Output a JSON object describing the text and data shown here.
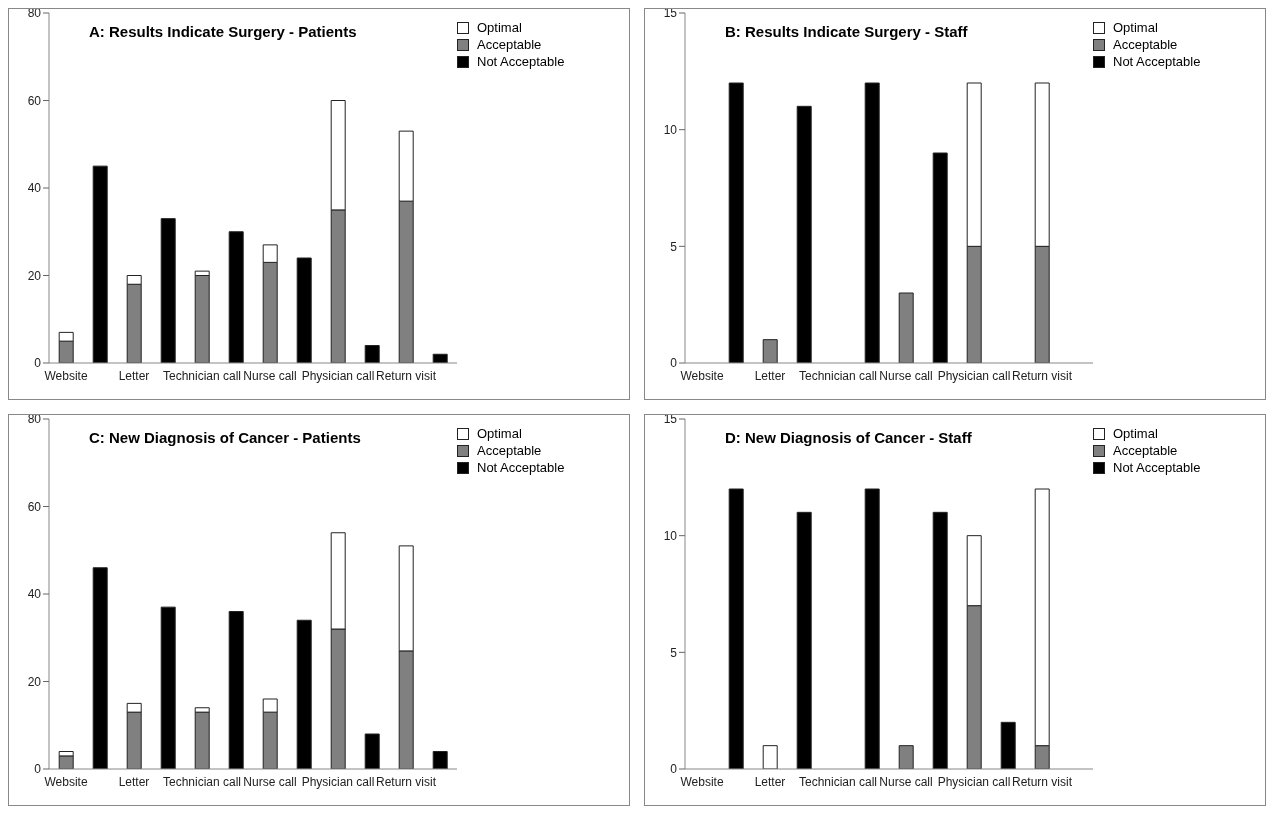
{
  "chart_data": [
    {
      "type": "bar",
      "title": "A: Results Indicate Surgery - Patients",
      "categories": [
        "Website",
        null,
        "Letter",
        null,
        "Technician call",
        null,
        "Nurse call",
        null,
        "Physician call",
        null,
        "Return visit",
        null
      ],
      "stacked": true,
      "ylim": [
        0,
        80
      ],
      "yticks": [
        0,
        20,
        40,
        60,
        80
      ],
      "grid": false,
      "legend": "top right",
      "series": [
        {
          "name": "Not Acceptable",
          "color": "#000000",
          "values": [
            null,
            45,
            null,
            33,
            null,
            30,
            null,
            24,
            null,
            4,
            null,
            2
          ]
        },
        {
          "name": "Acceptable",
          "color": "#808080",
          "values": [
            5,
            null,
            18,
            null,
            20,
            null,
            23,
            null,
            35,
            null,
            37,
            null
          ]
        },
        {
          "name": "Optimal",
          "color": "#ffffff",
          "values": [
            2,
            null,
            2,
            null,
            1,
            null,
            4,
            null,
            25,
            null,
            16,
            null
          ]
        }
      ]
    },
    {
      "type": "bar",
      "title": "B: Results Indicate Surgery - Staff",
      "categories": [
        "Website",
        null,
        "Letter",
        null,
        "Technician call",
        null,
        "Nurse call",
        null,
        "Physician call",
        null,
        "Return visit",
        null
      ],
      "stacked": true,
      "ylim": [
        0,
        15
      ],
      "yticks": [
        0,
        5,
        10,
        15
      ],
      "grid": false,
      "legend": "top right",
      "series": [
        {
          "name": "Not Acceptable",
          "color": "#000000",
          "values": [
            null,
            12,
            null,
            11,
            null,
            12,
            null,
            9,
            null,
            null,
            null,
            null
          ]
        },
        {
          "name": "Acceptable",
          "color": "#808080",
          "values": [
            null,
            null,
            1,
            null,
            null,
            null,
            3,
            null,
            5,
            null,
            5,
            null
          ]
        },
        {
          "name": "Optimal",
          "color": "#ffffff",
          "values": [
            null,
            null,
            null,
            null,
            null,
            null,
            null,
            null,
            7,
            null,
            7,
            null
          ]
        }
      ]
    },
    {
      "type": "bar",
      "title": "C: New Diagnosis of Cancer - Patients",
      "categories": [
        "Website",
        null,
        "Letter",
        null,
        "Technician call",
        null,
        "Nurse call",
        null,
        "Physician call",
        null,
        "Return visit",
        null
      ],
      "stacked": true,
      "ylim": [
        0,
        80
      ],
      "yticks": [
        0,
        20,
        40,
        60,
        80
      ],
      "grid": false,
      "legend": "top right",
      "series": [
        {
          "name": "Not Acceptable",
          "color": "#000000",
          "values": [
            null,
            46,
            null,
            37,
            null,
            36,
            null,
            34,
            null,
            8,
            null,
            4
          ]
        },
        {
          "name": "Acceptable",
          "color": "#808080",
          "values": [
            3,
            null,
            13,
            null,
            13,
            null,
            13,
            null,
            32,
            null,
            27,
            null
          ]
        },
        {
          "name": "Optimal",
          "color": "#ffffff",
          "values": [
            1,
            null,
            2,
            null,
            1,
            null,
            3,
            null,
            22,
            null,
            24,
            null
          ]
        }
      ]
    },
    {
      "type": "bar",
      "title": "D: New Diagnosis of Cancer - Staff",
      "categories": [
        "Website",
        null,
        "Letter",
        null,
        "Technician call",
        null,
        "Nurse call",
        null,
        "Physician call",
        null,
        "Return visit",
        null
      ],
      "stacked": true,
      "ylim": [
        0,
        15
      ],
      "yticks": [
        0,
        5,
        10,
        15
      ],
      "grid": false,
      "legend": "top right",
      "series": [
        {
          "name": "Not Acceptable",
          "color": "#000000",
          "values": [
            null,
            12,
            null,
            11,
            null,
            12,
            null,
            11,
            null,
            2,
            null,
            null
          ]
        },
        {
          "name": "Acceptable",
          "color": "#808080",
          "values": [
            null,
            null,
            null,
            null,
            null,
            null,
            1,
            null,
            7,
            null,
            1,
            null
          ]
        },
        {
          "name": "Optimal",
          "color": "#ffffff",
          "values": [
            null,
            null,
            1,
            null,
            null,
            null,
            null,
            null,
            3,
            null,
            11,
            null
          ]
        }
      ]
    }
  ]
}
